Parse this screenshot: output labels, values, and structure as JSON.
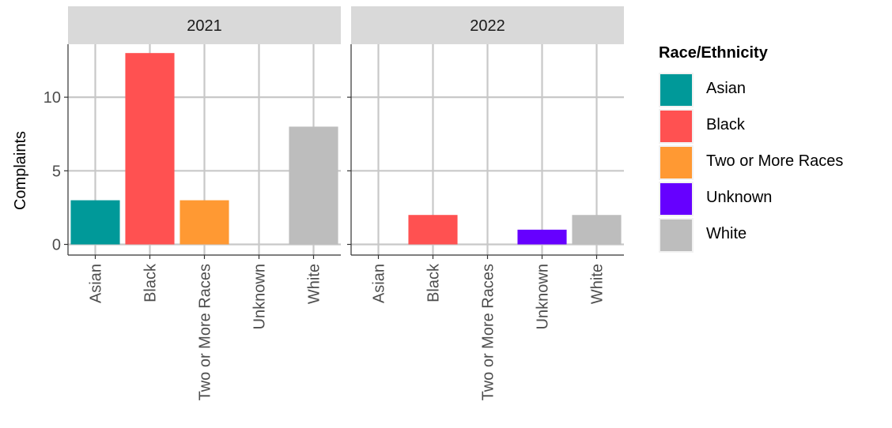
{
  "chart_data": {
    "type": "bar",
    "ylabel": "Complaints",
    "xlabel": "",
    "ylim": [
      0,
      13.6
    ],
    "yticks": [
      0,
      5,
      10
    ],
    "grid": true,
    "legend_position": "right",
    "categories": [
      "Asian",
      "Black",
      "Two or More Races",
      "Unknown",
      "White"
    ],
    "colors": {
      "Asian": "#009999",
      "Black": "#ff5151",
      "Two or More Races": "#ff9933",
      "Unknown": "#6600ff",
      "White": "#bdbdbd"
    },
    "facets": [
      {
        "label": "2021",
        "values": [
          3,
          13,
          3,
          0,
          8
        ]
      },
      {
        "label": "2022",
        "values": [
          0,
          2,
          0,
          1,
          2
        ]
      }
    ],
    "legend": {
      "title": "Race/Ethnicity",
      "items": [
        "Asian",
        "Black",
        "Two or More Races",
        "Unknown",
        "White"
      ]
    }
  }
}
